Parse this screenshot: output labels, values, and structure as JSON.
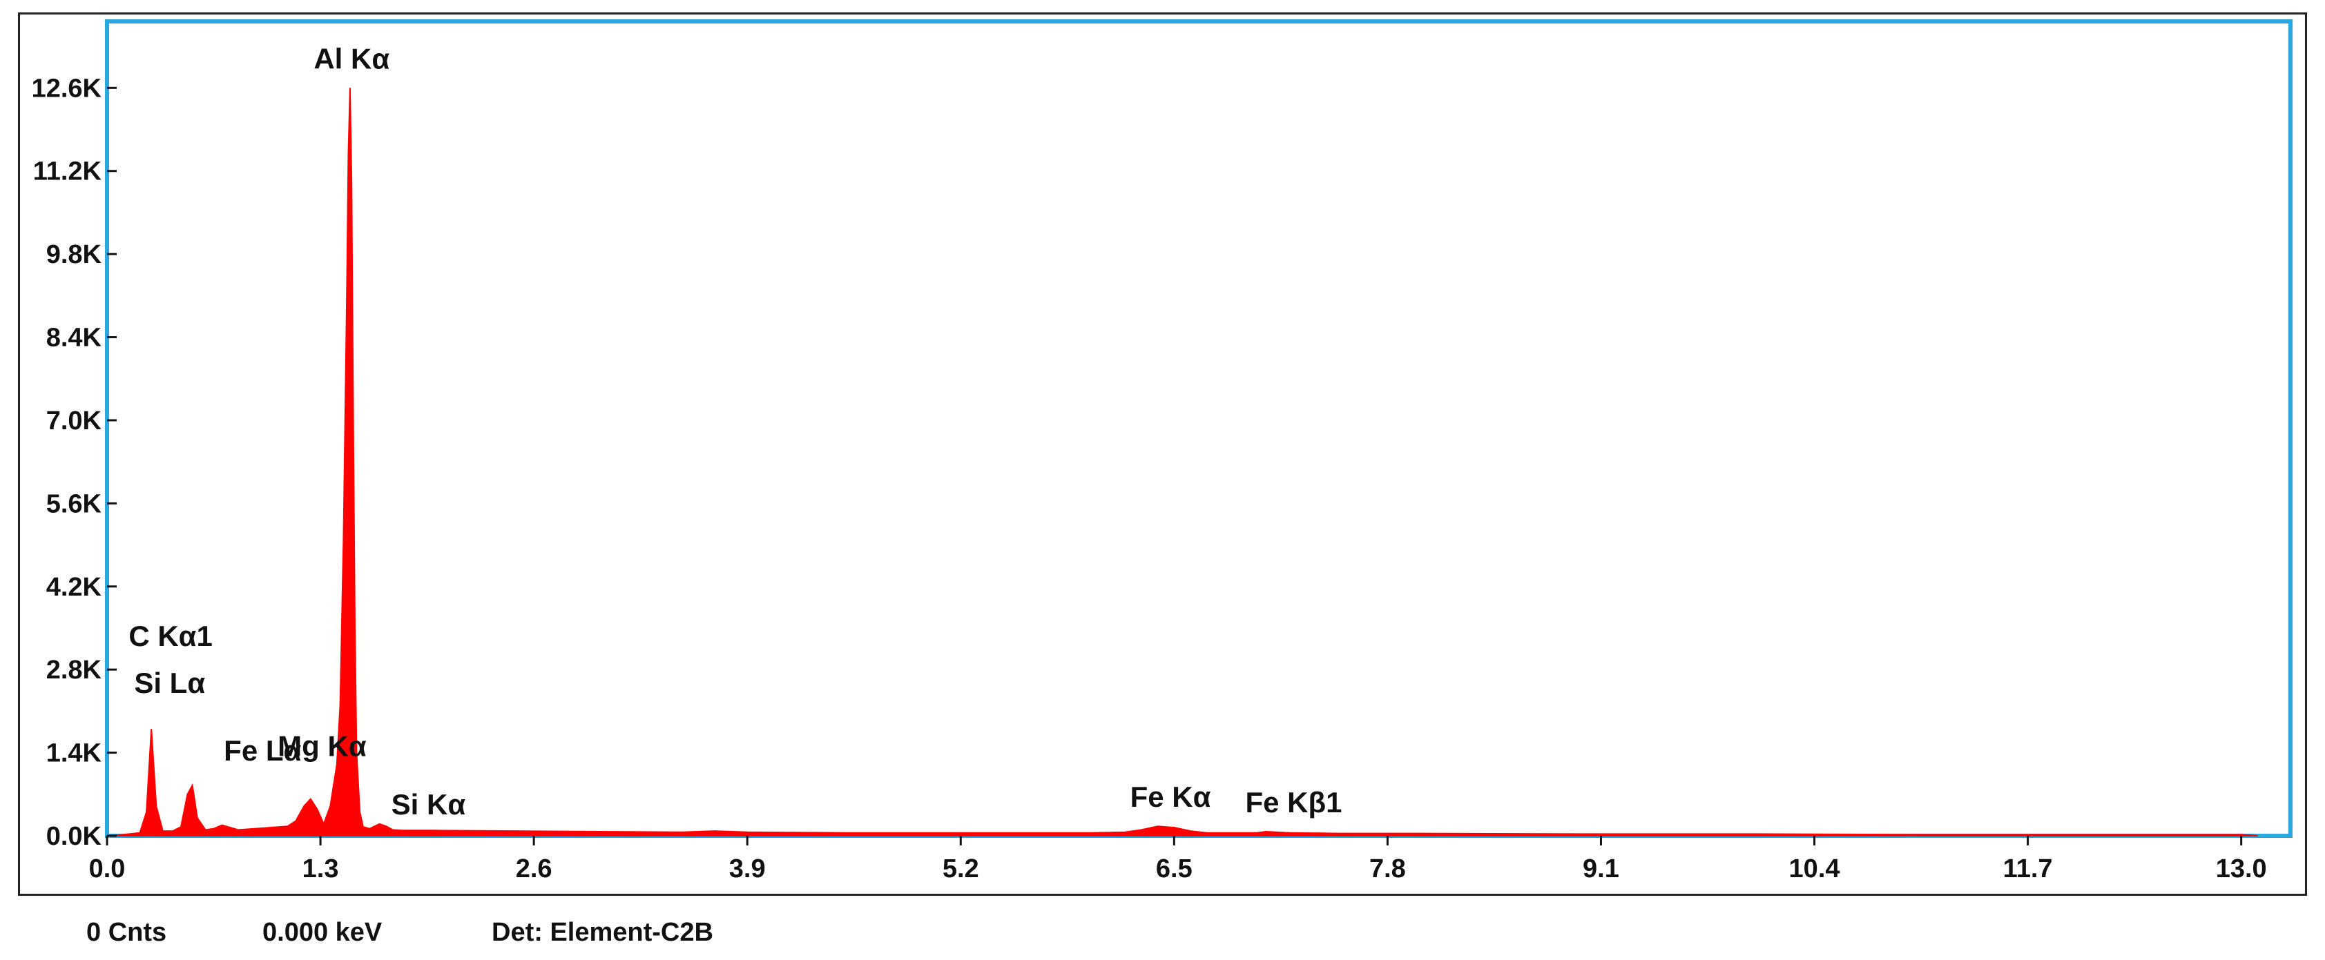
{
  "chart_data": {
    "type": "area",
    "title": "",
    "xlabel": "",
    "ylabel": "",
    "xlim": [
      0,
      13.3
    ],
    "ylim": [
      0,
      13.72
    ],
    "x_ticks": [
      "0.0",
      "1.3",
      "2.6",
      "3.9",
      "5.2",
      "6.5",
      "7.8",
      "9.1",
      "10.4",
      "11.7",
      "13.0"
    ],
    "x_tick_values": [
      0.0,
      1.3,
      2.6,
      3.9,
      5.2,
      6.5,
      7.8,
      9.1,
      10.4,
      11.7,
      13.0
    ],
    "y_ticks": [
      "0.0K",
      "1.4K",
      "2.8K",
      "4.2K",
      "5.6K",
      "7.0K",
      "8.4K",
      "9.8K",
      "11.2K",
      "12.6K"
    ],
    "y_tick_values": [
      0.0,
      1.4,
      2.8,
      4.2,
      5.6,
      7.0,
      8.4,
      9.8,
      11.2,
      12.6
    ],
    "y_unit": "K counts",
    "series": [
      {
        "color": "#ff0000",
        "x": [
          0.0,
          0.1,
          0.2,
          0.24,
          0.27,
          0.3,
          0.34,
          0.4,
          0.45,
          0.49,
          0.52,
          0.55,
          0.6,
          0.65,
          0.7,
          0.8,
          0.9,
          1.0,
          1.1,
          1.15,
          1.2,
          1.24,
          1.28,
          1.32,
          1.36,
          1.4,
          1.42,
          1.44,
          1.46,
          1.47,
          1.48,
          1.49,
          1.5,
          1.51,
          1.52,
          1.54,
          1.56,
          1.6,
          1.66,
          1.7,
          1.74,
          1.8,
          2.0,
          2.5,
          3.0,
          3.5,
          3.7,
          3.9,
          4.5,
          5.0,
          5.5,
          6.0,
          6.2,
          6.3,
          6.4,
          6.5,
          6.6,
          6.7,
          7.0,
          7.06,
          7.2,
          7.5,
          8.0,
          9.0,
          10.0,
          11.0,
          12.0,
          13.0,
          13.1
        ],
        "y": [
          0.0,
          0.02,
          0.05,
          0.4,
          1.8,
          0.5,
          0.08,
          0.08,
          0.15,
          0.7,
          0.85,
          0.3,
          0.1,
          0.12,
          0.18,
          0.1,
          0.12,
          0.14,
          0.16,
          0.25,
          0.5,
          0.62,
          0.45,
          0.2,
          0.5,
          1.2,
          2.2,
          5.0,
          9.0,
          11.5,
          12.6,
          11.0,
          7.0,
          3.5,
          1.4,
          0.4,
          0.15,
          0.12,
          0.2,
          0.16,
          0.1,
          0.09,
          0.09,
          0.08,
          0.07,
          0.06,
          0.08,
          0.06,
          0.05,
          0.05,
          0.05,
          0.05,
          0.06,
          0.1,
          0.16,
          0.14,
          0.08,
          0.05,
          0.05,
          0.07,
          0.05,
          0.04,
          0.04,
          0.03,
          0.03,
          0.02,
          0.02,
          0.02,
          0.0
        ]
      }
    ],
    "annotations": [
      {
        "text": "Al Kα",
        "x": 1.49,
        "y": 12.6
      },
      {
        "text": "C  Kα1",
        "x": 0.3,
        "y": 1.8
      },
      {
        "text": "Si Lα",
        "x": 0.3,
        "y": 1.8
      },
      {
        "text": "Fe Lα",
        "x": 0.72,
        "y": 0.85
      },
      {
        "text": "Mg Kα",
        "x": 1.25,
        "y": 0.62
      },
      {
        "text": "Si Kα",
        "x": 1.74,
        "y": 0.2
      },
      {
        "text": "Fe Kα",
        "x": 6.4,
        "y": 0.16
      },
      {
        "text": "Fe Kβ1",
        "x": 7.06,
        "y": 0.07
      }
    ],
    "grid": false,
    "legend": "none",
    "colors": {
      "plot_border": "#29a8e0",
      "frame": "#222222",
      "series": "#ff0000",
      "text": "#111111"
    }
  },
  "status": {
    "counts": "0 Cnts",
    "energy": "0.000 keV",
    "detector": "Det: Element-C2B"
  }
}
